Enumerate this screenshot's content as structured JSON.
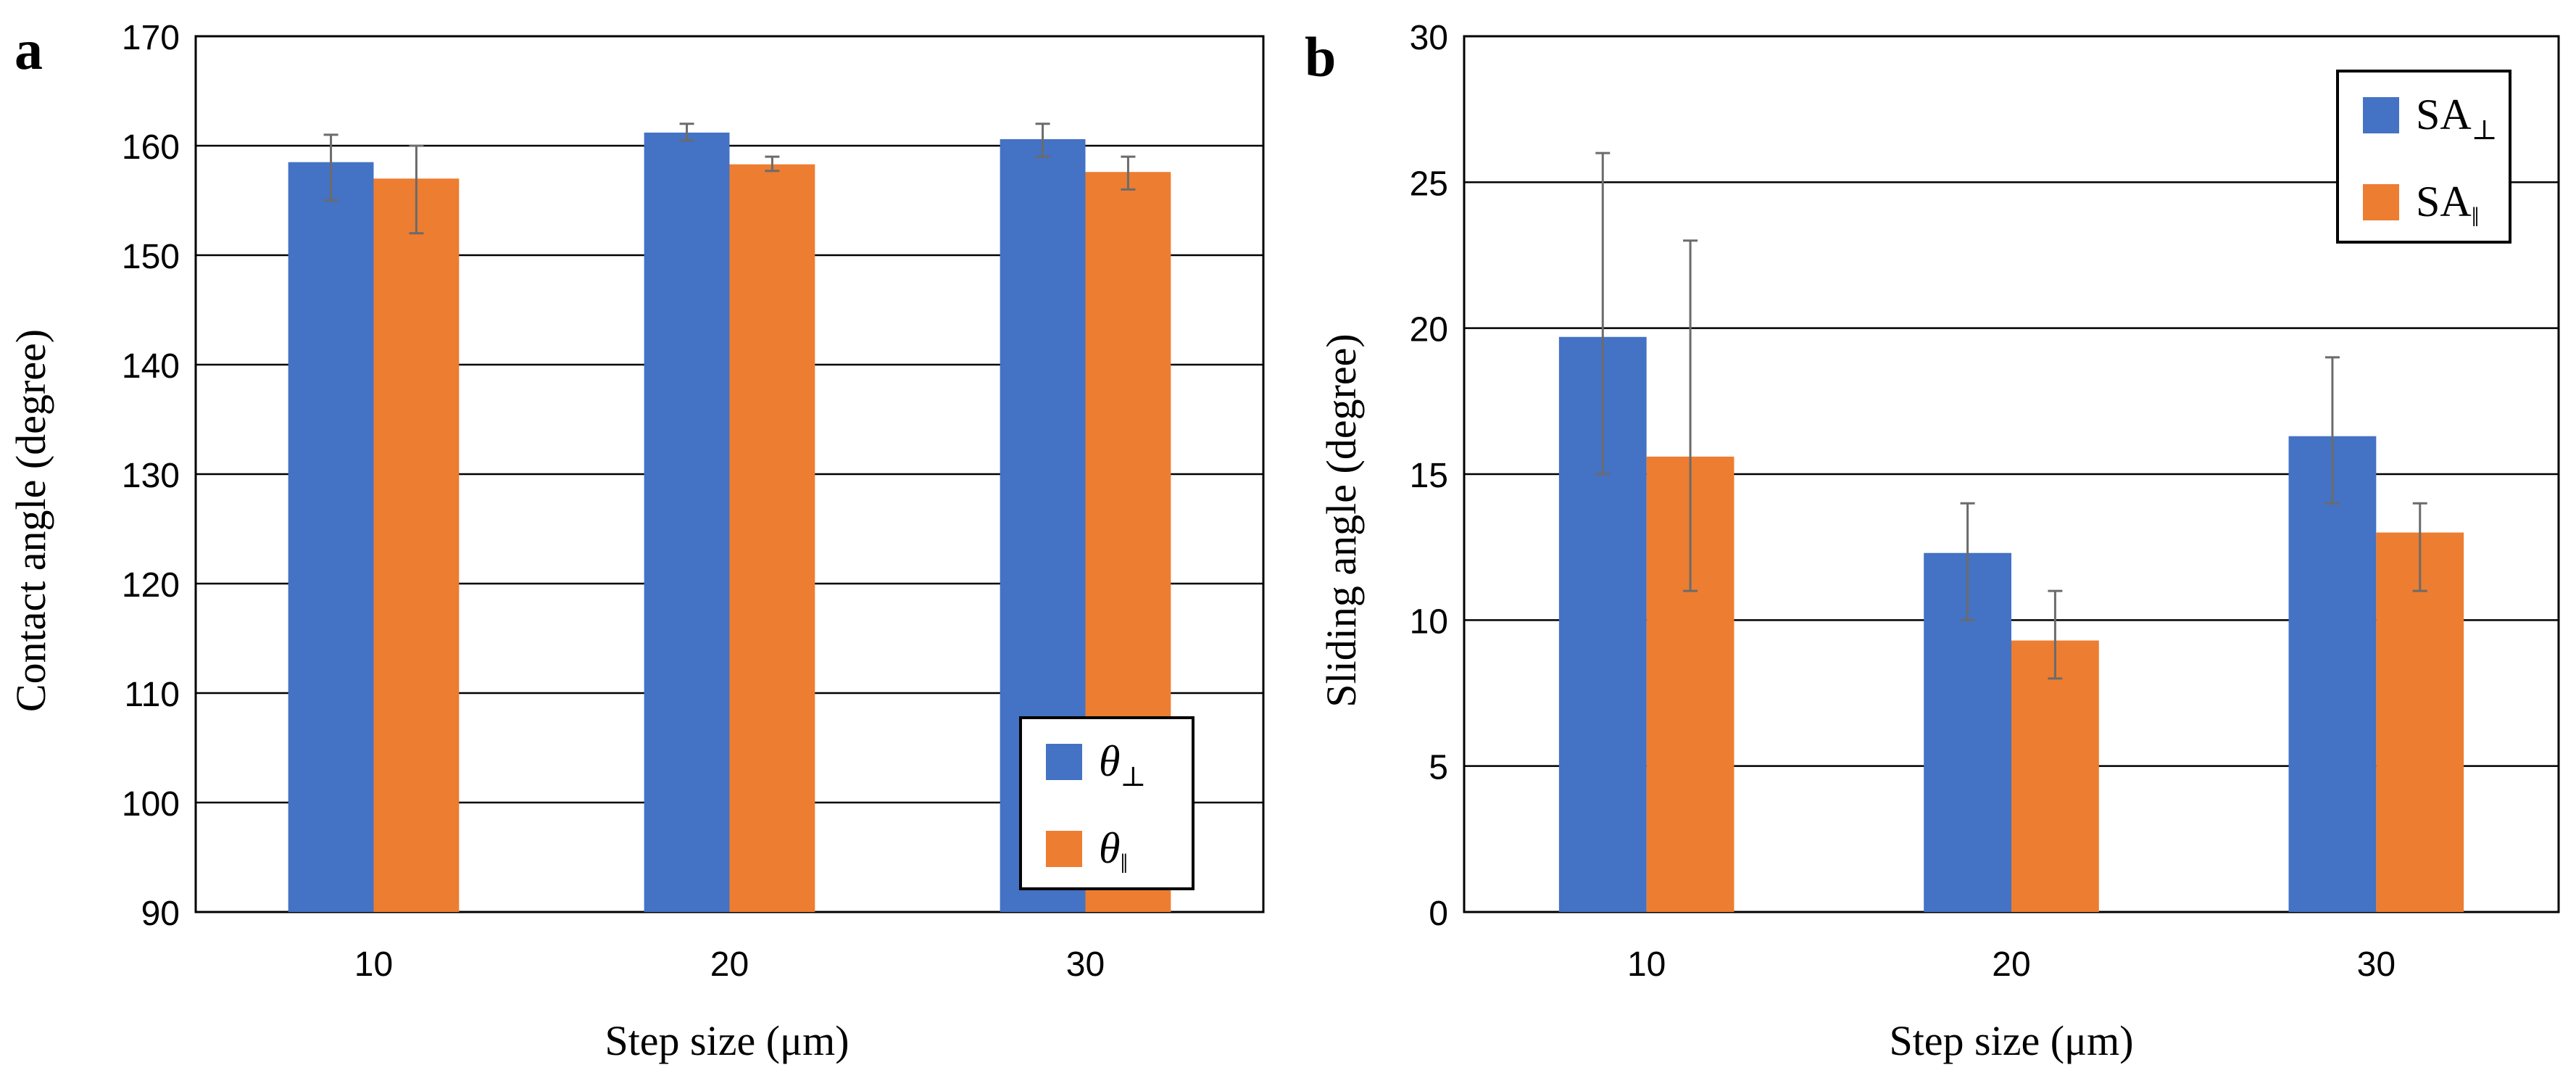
{
  "colors": {
    "series_perp": "#4472c4",
    "series_par": "#ed7d31",
    "gridline": "#000000",
    "errorbar": "#6b6b6b",
    "axis_text": "#000000"
  },
  "chart_data": [
    {
      "type": "bar",
      "panel_label": "a",
      "categories": [
        "10",
        "20",
        "30"
      ],
      "xlabel": "Step size (μm)",
      "ylabel": "Contact angle (degree)",
      "ylim": [
        90,
        170
      ],
      "yticks": [
        "90",
        "100",
        "110",
        "120",
        "130",
        "140",
        "150",
        "160",
        "170"
      ],
      "grid": true,
      "legend_position": "bottom-right",
      "series": [
        {
          "name": "θ",
          "subscript": "⊥",
          "italic": true,
          "values": [
            158.5,
            161.2,
            160.6
          ],
          "error_low": [
            155,
            160.5,
            159
          ],
          "error_high": [
            161,
            162,
            162
          ]
        },
        {
          "name": "θ",
          "subscript": "‖",
          "italic": true,
          "values": [
            157,
            158.3,
            157.6
          ],
          "error_low": [
            152,
            157.7,
            156
          ],
          "error_high": [
            160,
            159,
            159
          ]
        }
      ]
    },
    {
      "type": "bar",
      "panel_label": "b",
      "categories": [
        "10",
        "20",
        "30"
      ],
      "xlabel": "Step size (μm)",
      "ylabel": "Sliding angle (degree)",
      "ylim": [
        0,
        30
      ],
      "yticks": [
        "0",
        "5",
        "10",
        "15",
        "20",
        "25",
        "30"
      ],
      "grid": true,
      "legend_position": "top-right",
      "series": [
        {
          "name": "SA",
          "subscript": "⊥",
          "italic": false,
          "values": [
            19.7,
            12.3,
            16.3
          ],
          "error_low": [
            15,
            10,
            14
          ],
          "error_high": [
            26,
            14,
            19
          ]
        },
        {
          "name": "SA",
          "subscript": "‖",
          "italic": false,
          "values": [
            15.6,
            9.3,
            13
          ],
          "error_low": [
            11,
            8,
            11
          ],
          "error_high": [
            23,
            11,
            14
          ]
        }
      ]
    }
  ]
}
